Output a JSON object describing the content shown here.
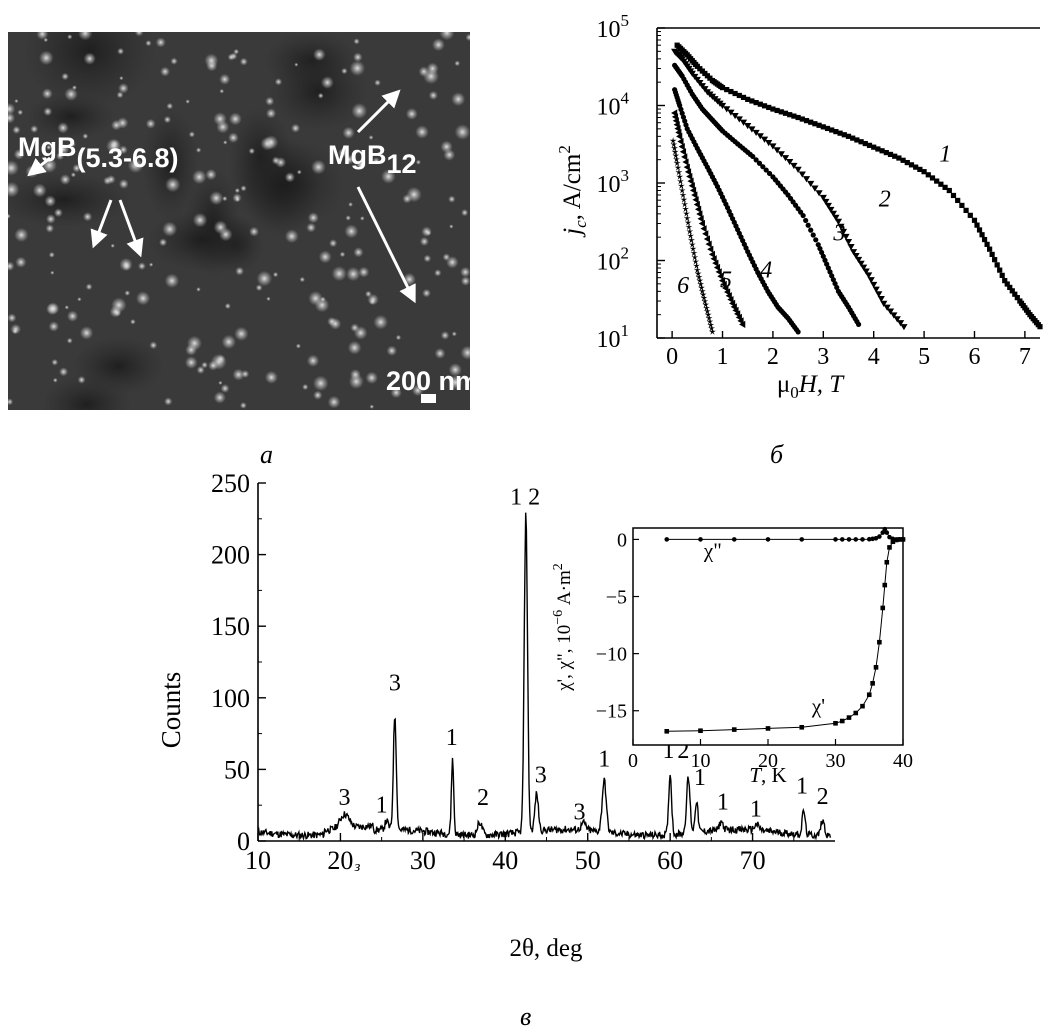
{
  "panel_labels": {
    "a": "а",
    "b": "б",
    "c": "в"
  },
  "micrograph": {
    "labels": {
      "mgb_base": "MgB",
      "mgb_sub": "(5.3-6.8)",
      "mgb12_base": "MgB",
      "mgb12_sub": "12",
      "scale": "200 nm"
    },
    "colors": {
      "background": "#3a3a3a",
      "label": "#ffffff"
    }
  },
  "chart_data": [
    {
      "id": "jc-vs-field",
      "type": "scatter",
      "xlabel_symbol": "μ",
      "xlabel_sub": "0",
      "xlabel_rest": "H, T",
      "ylabel_symbol": "j",
      "ylabel_sub": "c",
      "ylabel_rest": ", A/cm",
      "ylabel_sup": "2",
      "xlim": [
        -0.3,
        7.3
      ],
      "ylim": [
        10,
        100000
      ],
      "yscale": "log",
      "xticks": [
        0,
        1,
        2,
        3,
        4,
        5,
        6,
        7
      ],
      "yticks": [
        {
          "value": 10,
          "base": "10",
          "exp": "1"
        },
        {
          "value": 100,
          "base": "10",
          "exp": "2"
        },
        {
          "value": 1000,
          "base": "10",
          "exp": "3"
        },
        {
          "value": 10000,
          "base": "10",
          "exp": "4"
        },
        {
          "value": 100000,
          "base": "10",
          "exp": "5"
        }
      ],
      "series": [
        {
          "name": "1",
          "marker": "square",
          "x": [
            0.1,
            0.3,
            0.5,
            0.8,
            1.0,
            1.5,
            2.0,
            2.5,
            3.0,
            3.5,
            4.0,
            4.5,
            5.0,
            5.5,
            6.0,
            6.3,
            6.6,
            6.9,
            7.1,
            7.3
          ],
          "y": [
            60000,
            45000,
            32000,
            21000,
            17000,
            12000,
            9000,
            7000,
            5300,
            4000,
            2900,
            2100,
            1400,
            800,
            330,
            140,
            55,
            30,
            20,
            14
          ],
          "label_at": {
            "x": 5.3,
            "y": 1900
          }
        },
        {
          "name": "2",
          "marker": "triangle-down",
          "x": [
            0.05,
            0.2,
            0.4,
            0.7,
            1.0,
            1.5,
            2.0,
            2.5,
            3.0,
            3.3,
            3.6,
            3.9,
            4.2,
            4.6
          ],
          "y": [
            50000,
            40000,
            26000,
            15000,
            10000,
            5500,
            3000,
            1500,
            650,
            320,
            130,
            65,
            28,
            14
          ],
          "label_at": {
            "x": 4.1,
            "y": 500
          }
        },
        {
          "name": "3",
          "marker": "circle",
          "x": [
            0.05,
            0.2,
            0.4,
            0.6,
            0.8,
            1.0,
            1.3,
            1.6,
            2.0,
            2.3,
            2.6,
            2.9,
            3.1,
            3.3,
            3.5,
            3.7
          ],
          "y": [
            33000,
            24000,
            14000,
            9000,
            6500,
            4700,
            3200,
            2200,
            1200,
            700,
            380,
            160,
            80,
            40,
            25,
            15
          ],
          "label_at": {
            "x": 3.2,
            "y": 180
          }
        },
        {
          "name": "4",
          "marker": "circle",
          "x": [
            0.05,
            0.15,
            0.3,
            0.5,
            0.7,
            0.9,
            1.1,
            1.3,
            1.5,
            1.7,
            1.9,
            2.1,
            2.3,
            2.5
          ],
          "y": [
            16000,
            10000,
            5000,
            2800,
            1600,
            900,
            480,
            250,
            130,
            70,
            40,
            25,
            18,
            12
          ],
          "label_at": {
            "x": 1.75,
            "y": 60
          }
        },
        {
          "name": "5",
          "marker": "triangle-left",
          "x": [
            0.05,
            0.15,
            0.3,
            0.45,
            0.6,
            0.8,
            1.0,
            1.2,
            1.4
          ],
          "y": [
            8000,
            4000,
            1600,
            700,
            300,
            120,
            55,
            28,
            15
          ],
          "label_at": {
            "x": 0.95,
            "y": 45
          }
        },
        {
          "name": "6",
          "marker": "star",
          "x": [
            0.02,
            0.1,
            0.2,
            0.3,
            0.4,
            0.5,
            0.6,
            0.7,
            0.8
          ],
          "y": [
            3500,
            1800,
            800,
            350,
            160,
            75,
            40,
            22,
            12
          ],
          "label_at": {
            "x": 0.1,
            "y": 38
          }
        }
      ]
    },
    {
      "id": "xrd-pattern",
      "type": "line",
      "xlabel": "2θ, deg",
      "ylabel": "Counts",
      "xlim": [
        10,
        80
      ],
      "ylim": [
        0,
        250
      ],
      "xticks": [
        10,
        20,
        30,
        40,
        50,
        60,
        70
      ],
      "yticks": [
        0,
        50,
        100,
        150,
        200,
        250
      ],
      "x_tick_stray": "з",
      "peaks": [
        {
          "x": 20.5,
          "h": 10,
          "w": 0.8
        },
        {
          "x": 25.6,
          "h": 6,
          "w": 0.3
        },
        {
          "x": 26.6,
          "h": 80,
          "w": 0.25
        },
        {
          "x": 33.6,
          "h": 52,
          "w": 0.2
        },
        {
          "x": 36.9,
          "h": 9,
          "w": 0.4
        },
        {
          "x": 42.5,
          "h": 222,
          "w": 0.28
        },
        {
          "x": 43.8,
          "h": 26,
          "w": 0.3
        },
        {
          "x": 49.5,
          "h": 5,
          "w": 0.4
        },
        {
          "x": 52.0,
          "h": 36,
          "w": 0.35
        },
        {
          "x": 60.0,
          "h": 42,
          "w": 0.25
        },
        {
          "x": 62.2,
          "h": 38,
          "w": 0.3
        },
        {
          "x": 63.2,
          "h": 22,
          "w": 0.25
        },
        {
          "x": 66.2,
          "h": 6,
          "w": 0.3
        },
        {
          "x": 70.5,
          "h": 4,
          "w": 0.4
        },
        {
          "x": 76.2,
          "h": 17,
          "w": 0.25
        },
        {
          "x": 78.5,
          "h": 11,
          "w": 0.3
        }
      ],
      "annotations": [
        {
          "text": "3",
          "x": 20.5,
          "y": 25
        },
        {
          "text": "1",
          "x": 25.0,
          "y": 20
        },
        {
          "text": "3",
          "x": 26.6,
          "y": 105
        },
        {
          "text": "1",
          "x": 33.5,
          "y": 67
        },
        {
          "text": "2",
          "x": 37.3,
          "y": 25
        },
        {
          "text": "1 2",
          "x": 42.4,
          "y": 235
        },
        {
          "text": "3",
          "x": 44.3,
          "y": 41
        },
        {
          "text": "3",
          "x": 49.0,
          "y": 15
        },
        {
          "text": "1",
          "x": 52.0,
          "y": 52
        },
        {
          "text": "1",
          "x": 59.8,
          "y": 58
        },
        {
          "text": "2",
          "x": 61.6,
          "y": 58
        },
        {
          "text": "1",
          "x": 63.6,
          "y": 39
        },
        {
          "text": "1",
          "x": 66.4,
          "y": 22
        },
        {
          "text": "1",
          "x": 70.4,
          "y": 17
        },
        {
          "text": "1",
          "x": 76.0,
          "y": 33
        },
        {
          "text": "2",
          "x": 78.5,
          "y": 26
        }
      ],
      "inset": {
        "type": "line",
        "xlabel_symbol": "T",
        "xlabel_rest": ", K",
        "ylabel_pre": "χ', χ\", 10",
        "ylabel_sup": "−6",
        "ylabel_mid": " A·m",
        "ylabel_sup2": "2",
        "xlim": [
          0,
          40
        ],
        "ylim": [
          -18,
          1
        ],
        "xticks": [
          0,
          10,
          20,
          30,
          40
        ],
        "yticks": [
          {
            "value": 0,
            "label": "0"
          },
          {
            "value": -5,
            "label": "−5"
          },
          {
            "value": -10,
            "label": "−10"
          },
          {
            "value": -15,
            "label": "−15"
          }
        ],
        "series": [
          {
            "name": "χ\"",
            "marker": "circle",
            "x": [
              5,
              10,
              15,
              20,
              25,
              30,
              31,
              32,
              33,
              34,
              35,
              35.5,
              36,
              36.5,
              37,
              37.3,
              37.6,
              38,
              38.5,
              39,
              39.5,
              40
            ],
            "y": [
              0,
              0,
              0,
              0,
              0,
              0,
              0,
              0,
              0,
              0,
              0.02,
              0.05,
              0.1,
              0.25,
              0.6,
              0.9,
              0.6,
              0.2,
              0.05,
              0,
              0,
              0
            ],
            "label_at": {
              "x": 10.5,
              "y": -1.6
            }
          },
          {
            "name": "χ'",
            "marker": "square",
            "x": [
              5,
              10,
              15,
              20,
              25,
              30,
              31,
              32,
              33,
              34,
              35,
              35.5,
              36,
              36.5,
              37,
              37.3,
              37.6,
              38,
              38.5,
              39,
              39.5,
              40
            ],
            "y": [
              -16.8,
              -16.75,
              -16.65,
              -16.55,
              -16.45,
              -16.1,
              -15.9,
              -15.6,
              -15.2,
              -14.6,
              -13.6,
              -12.6,
              -11.2,
              -9,
              -6,
              -4,
              -2,
              -0.7,
              -0.2,
              -0.05,
              0,
              0
            ],
            "label_at": {
              "x": 26.5,
              "y": -15.2
            }
          }
        ]
      }
    }
  ]
}
